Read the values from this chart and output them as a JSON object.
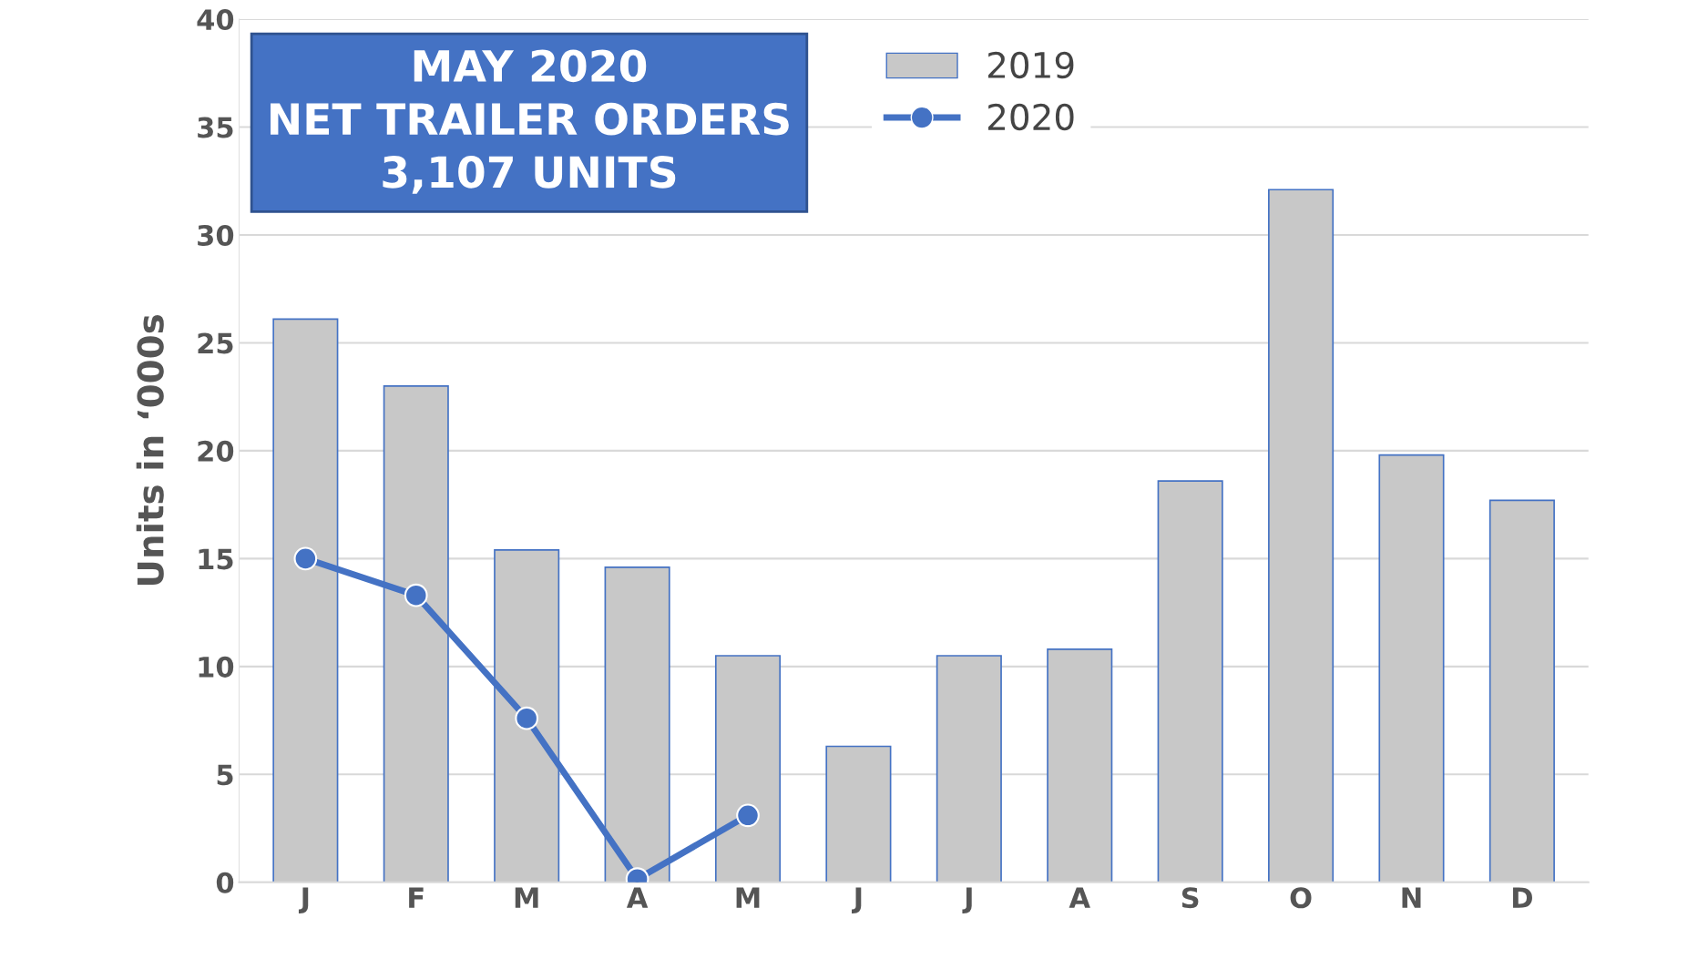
{
  "chart_data": {
    "type": "bar",
    "categories": [
      "J",
      "F",
      "M",
      "A",
      "M",
      "J",
      "J",
      "A",
      "S",
      "O",
      "N",
      "D"
    ],
    "ylabel": "Units in ‘000s",
    "series": [
      {
        "name": "2019",
        "color": "#c8c8c8",
        "values": [
          26.1,
          23.0,
          15.4,
          14.6,
          10.5,
          6.3,
          10.5,
          10.8,
          18.6,
          32.1,
          19.8,
          17.7
        ]
      },
      {
        "name": "2020",
        "type": "line",
        "color": "#4472c4",
        "marker": "circle",
        "values": [
          15.0,
          13.3,
          7.6,
          0.15,
          3.1,
          null,
          null,
          null,
          null,
          null,
          null,
          null
        ]
      }
    ],
    "annotations": [
      "MAY 2020\nNET TRAILER ORDERS\n3,107 UNITS"
    ],
    "ylim": [
      0,
      40
    ],
    "yticks": [
      0,
      5,
      10,
      15,
      20,
      25,
      30,
      35,
      40
    ],
    "grid": "y",
    "legend": "top"
  }
}
